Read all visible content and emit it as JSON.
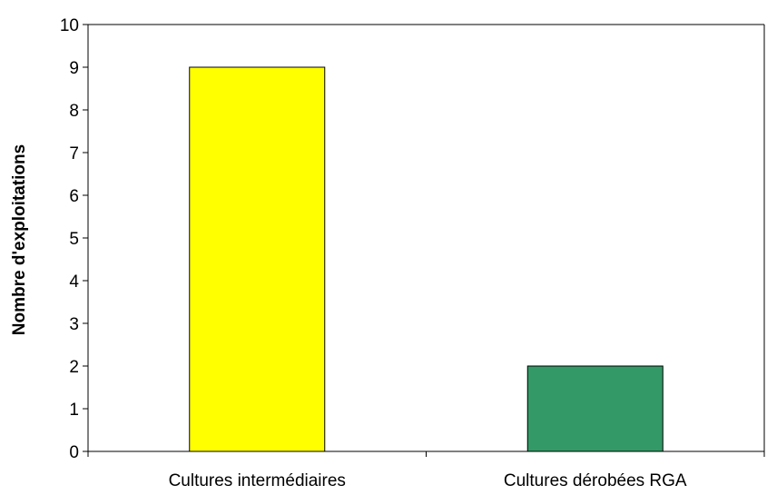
{
  "chart_data": {
    "type": "bar",
    "categories": [
      "Cultures intermédiaires",
      "Cultures dérobées RGA"
    ],
    "values": [
      9,
      2
    ],
    "title": "",
    "xlabel": "",
    "ylabel": "Nombre d'exploitations",
    "ylim": [
      0,
      10
    ],
    "yticks": [
      0,
      1,
      2,
      3,
      4,
      5,
      6,
      7,
      8,
      9,
      10
    ],
    "grid": false,
    "legend": "none",
    "colors": [
      "#ffff00",
      "#339966"
    ],
    "border_color": "#000000"
  }
}
